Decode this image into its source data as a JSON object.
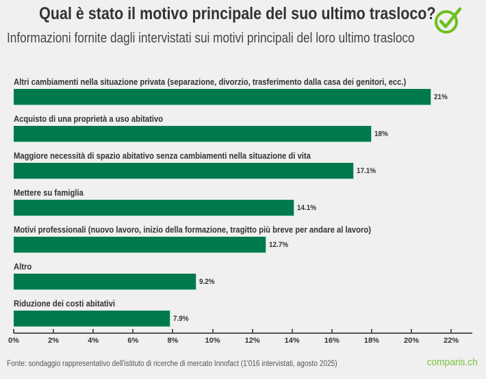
{
  "header": {
    "title": "Qual è stato il motivo principale del suo ultimo trasloco?",
    "subtitle": "Informazioni fornite dagli intervistati sui motivi principali del loro ultimo trasloco",
    "logo_icon": "checkmark-circle-icon"
  },
  "footer": {
    "source": "Fonte: sondaggio rappresentativo dell'istituto di ricerche di mercato Innofact (1'016 intervistati, agosto 2025)",
    "brand": "comparis.ch"
  },
  "colors": {
    "bar": "#007a4d",
    "background": "#f0f0f0",
    "logo": "#6cc01c",
    "brand_text": "#7dc243"
  },
  "chart_data": {
    "type": "bar",
    "orientation": "horizontal",
    "title": "Qual è stato il motivo principale del suo ultimo trasloco?",
    "subtitle": "Informazioni fornite dagli intervistati sui motivi principali del loro ultimo trasloco",
    "xlabel": "",
    "ylabel": "",
    "categories": [
      "Altri cambiamenti nella situazione privata (separazione, divorzio, trasferimento dalla casa dei genitori, ecc.)",
      "Acquisto di una proprietà a uso abitativo",
      "Maggiore necessità di spazio abitativo senza cambiamenti nella situazione di vita",
      "Mettere su famiglia",
      "Motivi professionali (nuovo lavoro, inizio della formazione, tragitto più breve per andare al lavoro)",
      "Altro",
      "Riduzione dei costi abitativi"
    ],
    "values": [
      21,
      18,
      17.1,
      14.1,
      12.7,
      9.2,
      7.9
    ],
    "value_labels": [
      "21%",
      "18%",
      "17.1%",
      "14.1%",
      "12.7%",
      "9.2%",
      "7.9%"
    ],
    "xlim": [
      0,
      23
    ],
    "x_ticks": [
      "0%",
      "2%",
      "4%",
      "6%",
      "8%",
      "10%",
      "12%",
      "14%",
      "16%",
      "18%",
      "20%",
      "22%"
    ],
    "grid": false,
    "legend": null
  }
}
